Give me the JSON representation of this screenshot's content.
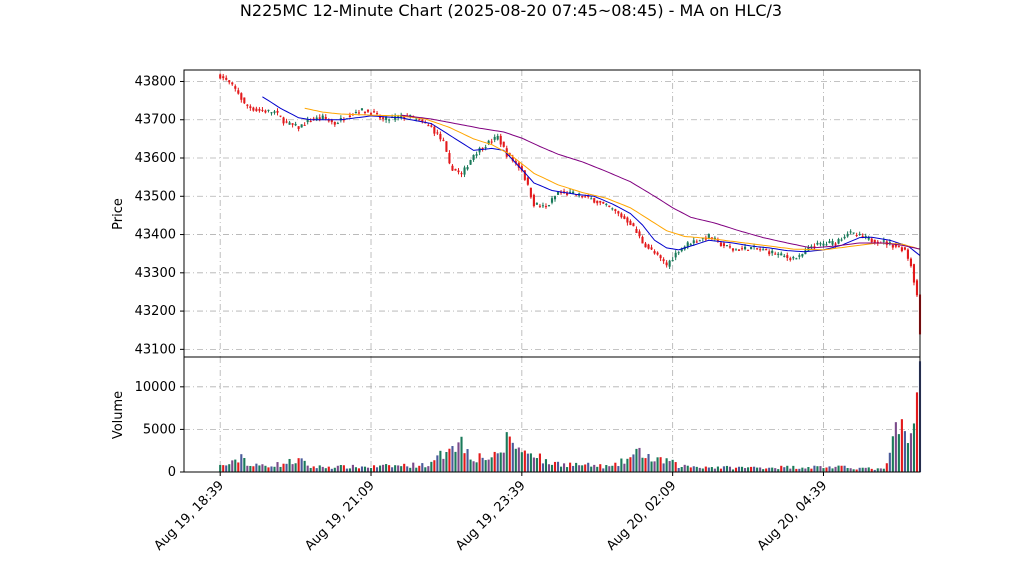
{
  "chart_data": {
    "type": "candlestick",
    "title": "N225MC 12-Minute Chart (2025-08-20 07:45~08:45) - MA on HLC/3",
    "price_panel": {
      "ylabel": "Price",
      "ylim": [
        43080,
        43830
      ],
      "yticks": [
        43100,
        43200,
        43300,
        43400,
        43500,
        43600,
        43700,
        43800
      ],
      "ytick_labels": [
        "43100",
        "43200",
        "43300",
        "43400",
        "43500",
        "43600",
        "43700",
        "43800"
      ]
    },
    "volume_panel": {
      "ylabel": "Volume",
      "ylim": [
        0,
        13500
      ],
      "yticks": [
        0,
        5000,
        10000
      ],
      "ytick_labels": [
        "0",
        "5000",
        "10000"
      ]
    },
    "x_axis": {
      "xlim": [
        -12,
        232
      ],
      "ticks": [
        0,
        50,
        100,
        150,
        200
      ],
      "tick_labels": [
        "Aug 19, 18:39",
        "Aug 19, 21:09",
        "Aug 19, 23:39",
        "Aug 20, 02:09",
        "Aug 20, 04:39"
      ]
    },
    "colors": {
      "up": "#1a7a5a",
      "down": "#e31a1c",
      "ma_short": "#0000cc",
      "ma_mid": "#ffa500",
      "ma_long": "#800080"
    },
    "price_anchors": [
      [
        0,
        43815
      ],
      [
        3,
        43795
      ],
      [
        6,
        43770
      ],
      [
        8,
        43740
      ],
      [
        12,
        43725
      ],
      [
        18,
        43720
      ],
      [
        22,
        43690
      ],
      [
        26,
        43680
      ],
      [
        30,
        43700
      ],
      [
        34,
        43705
      ],
      [
        38,
        43690
      ],
      [
        42,
        43710
      ],
      [
        46,
        43725
      ],
      [
        50,
        43720
      ],
      [
        54,
        43700
      ],
      [
        58,
        43705
      ],
      [
        62,
        43710
      ],
      [
        65,
        43700
      ],
      [
        70,
        43680
      ],
      [
        74,
        43640
      ],
      [
        76,
        43580
      ],
      [
        80,
        43555
      ],
      [
        84,
        43610
      ],
      [
        88,
        43635
      ],
      [
        92,
        43655
      ],
      [
        95,
        43610
      ],
      [
        100,
        43570
      ],
      [
        104,
        43480
      ],
      [
        108,
        43470
      ],
      [
        112,
        43510
      ],
      [
        118,
        43505
      ],
      [
        124,
        43490
      ],
      [
        130,
        43465
      ],
      [
        136,
        43430
      ],
      [
        140,
        43380
      ],
      [
        144,
        43350
      ],
      [
        148,
        43320
      ],
      [
        152,
        43360
      ],
      [
        156,
        43380
      ],
      [
        162,
        43395
      ],
      [
        166,
        43375
      ],
      [
        170,
        43360
      ],
      [
        176,
        43365
      ],
      [
        182,
        43355
      ],
      [
        188,
        43340
      ],
      [
        192,
        43340
      ],
      [
        196,
        43370
      ],
      [
        200,
        43375
      ],
      [
        204,
        43380
      ],
      [
        208,
        43405
      ],
      [
        212,
        43395
      ],
      [
        216,
        43385
      ],
      [
        220,
        43380
      ],
      [
        224,
        43370
      ],
      [
        227,
        43360
      ],
      [
        229,
        43320
      ],
      [
        231,
        43240
      ],
      [
        232,
        43140
      ]
    ],
    "volume_anchors": [
      [
        0,
        700
      ],
      [
        5,
        1100
      ],
      [
        7,
        2000
      ],
      [
        10,
        700
      ],
      [
        20,
        900
      ],
      [
        26,
        1400
      ],
      [
        30,
        600
      ],
      [
        50,
        600
      ],
      [
        70,
        900
      ],
      [
        74,
        2200
      ],
      [
        76,
        3600
      ],
      [
        80,
        3400
      ],
      [
        84,
        1800
      ],
      [
        92,
        1700
      ],
      [
        96,
        4300
      ],
      [
        100,
        2200
      ],
      [
        104,
        2500
      ],
      [
        108,
        1100
      ],
      [
        130,
        600
      ],
      [
        140,
        2400
      ],
      [
        144,
        1200
      ],
      [
        148,
        1400
      ],
      [
        152,
        700
      ],
      [
        170,
        500
      ],
      [
        200,
        600
      ],
      [
        210,
        500
      ],
      [
        220,
        300
      ],
      [
        226,
        6200
      ],
      [
        228,
        3400
      ],
      [
        230,
        5700
      ],
      [
        232,
        13000
      ]
    ],
    "ma_short_anchors": [
      [
        14,
        43760
      ],
      [
        20,
        43730
      ],
      [
        26,
        43705
      ],
      [
        30,
        43700
      ],
      [
        40,
        43700
      ],
      [
        50,
        43710
      ],
      [
        60,
        43705
      ],
      [
        70,
        43690
      ],
      [
        74,
        43670
      ],
      [
        80,
        43640
      ],
      [
        84,
        43620
      ],
      [
        90,
        43625
      ],
      [
        94,
        43620
      ],
      [
        100,
        43570
      ],
      [
        104,
        43535
      ],
      [
        110,
        43515
      ],
      [
        118,
        43505
      ],
      [
        124,
        43500
      ],
      [
        130,
        43480
      ],
      [
        136,
        43455
      ],
      [
        140,
        43425
      ],
      [
        144,
        43385
      ],
      [
        148,
        43365
      ],
      [
        152,
        43360
      ],
      [
        156,
        43370
      ],
      [
        162,
        43385
      ],
      [
        170,
        43378
      ],
      [
        176,
        43370
      ],
      [
        182,
        43365
      ],
      [
        188,
        43358
      ],
      [
        194,
        43355
      ],
      [
        200,
        43360
      ],
      [
        206,
        43372
      ],
      [
        212,
        43392
      ],
      [
        216,
        43393
      ],
      [
        222,
        43385
      ],
      [
        228,
        43370
      ],
      [
        232,
        43345
      ]
    ],
    "ma_mid_anchors": [
      [
        28,
        43730
      ],
      [
        34,
        43720
      ],
      [
        40,
        43715
      ],
      [
        50,
        43712
      ],
      [
        60,
        43710
      ],
      [
        68,
        43702
      ],
      [
        76,
        43680
      ],
      [
        84,
        43650
      ],
      [
        90,
        43635
      ],
      [
        96,
        43610
      ],
      [
        104,
        43560
      ],
      [
        112,
        43530
      ],
      [
        120,
        43510
      ],
      [
        128,
        43495
      ],
      [
        136,
        43470
      ],
      [
        142,
        43440
      ],
      [
        148,
        43410
      ],
      [
        154,
        43395
      ],
      [
        162,
        43390
      ],
      [
        170,
        43382
      ],
      [
        180,
        43372
      ],
      [
        190,
        43362
      ],
      [
        200,
        43360
      ],
      [
        210,
        43370
      ],
      [
        218,
        43378
      ],
      [
        226,
        43375
      ],
      [
        232,
        43362
      ]
    ],
    "ma_long_anchors": [
      [
        60,
        43712
      ],
      [
        70,
        43702
      ],
      [
        78,
        43690
      ],
      [
        86,
        43678
      ],
      [
        94,
        43668
      ],
      [
        100,
        43652
      ],
      [
        106,
        43630
      ],
      [
        112,
        43610
      ],
      [
        120,
        43590
      ],
      [
        128,
        43565
      ],
      [
        136,
        43538
      ],
      [
        144,
        43500
      ],
      [
        150,
        43470
      ],
      [
        156,
        43445
      ],
      [
        164,
        43430
      ],
      [
        172,
        43410
      ],
      [
        180,
        43392
      ],
      [
        188,
        43378
      ],
      [
        196,
        43365
      ],
      [
        204,
        43370
      ],
      [
        212,
        43378
      ],
      [
        220,
        43378
      ],
      [
        226,
        43372
      ],
      [
        232,
        43362
      ]
    ]
  }
}
